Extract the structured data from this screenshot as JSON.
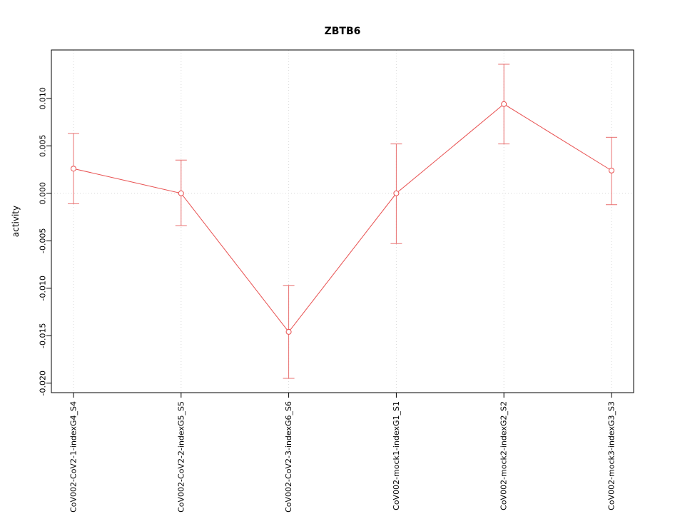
{
  "chart_data": {
    "type": "line",
    "title": "ZBTB6",
    "xlabel": "",
    "ylabel": "activity",
    "categories": [
      "CoV002-CoV2-1-indexG4_S4",
      "CoV002-CoV2-2-indexG5_S5",
      "CoV002-CoV2-3-indexG6_S6",
      "CoV002-mock1-indexG1_S1",
      "CoV002-mock2-indexG2_S2",
      "CoV002-mock3-indexG3_S3"
    ],
    "values": [
      0.0026,
      0.0,
      -0.0146,
      0.0,
      0.0094,
      0.0024
    ],
    "error_low": [
      -0.0011,
      -0.0034,
      -0.0195,
      -0.0053,
      0.0052,
      -0.0012
    ],
    "error_high": [
      0.0063,
      0.0035,
      -0.0097,
      0.0052,
      0.0136,
      0.0059
    ],
    "yticks": [
      -0.02,
      -0.015,
      -0.01,
      -0.005,
      0.0,
      0.005,
      0.01
    ],
    "ylim": [
      -0.021,
      0.0151
    ],
    "grid": true,
    "legend_position": "none",
    "point_style": "open-circle",
    "zero_line": 0,
    "colors": {
      "line": "#e85050",
      "error_bar": "#e87070",
      "grid": "#d8d8d8",
      "axis": "#000000"
    }
  }
}
